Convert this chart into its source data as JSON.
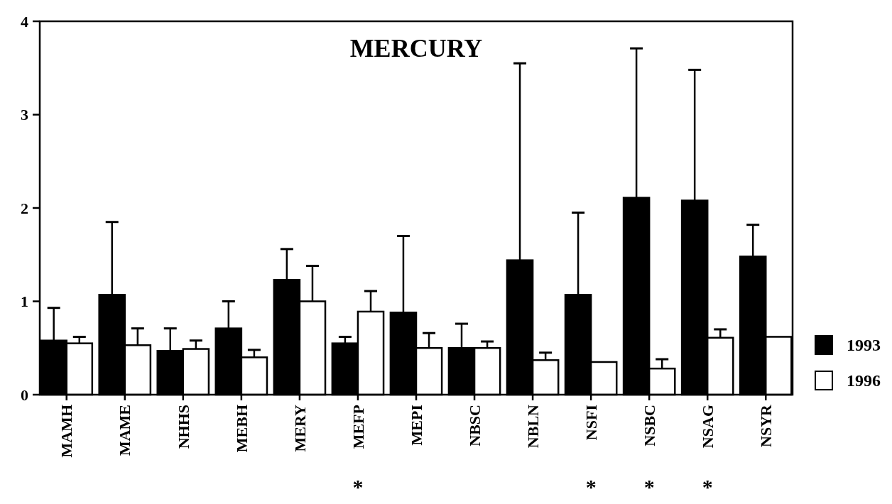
{
  "chart_data": {
    "type": "bar",
    "title": "MERCURY",
    "categories": [
      "MAMH",
      "MAME",
      "NHHS",
      "MEBH",
      "MERY",
      "MEFP",
      "MEPI",
      "NBSC",
      "NBLN",
      "NSFI",
      "NSBC",
      "NSAG",
      "NSYR"
    ],
    "series": [
      {
        "name": "1993",
        "color": "#000000",
        "values": [
          0.58,
          1.07,
          0.47,
          0.71,
          1.23,
          0.55,
          0.88,
          0.5,
          1.44,
          1.07,
          2.11,
          2.08,
          1.48
        ],
        "errors": [
          [
            0.58,
            0.93
          ],
          [
            1.07,
            1.85
          ],
          [
            0.47,
            0.71
          ],
          [
            0.71,
            1.0
          ],
          [
            1.23,
            1.56
          ],
          [
            0.55,
            0.62
          ],
          [
            0.88,
            1.7
          ],
          [
            0.5,
            0.76
          ],
          [
            1.44,
            3.55
          ],
          [
            1.07,
            1.95
          ],
          [
            2.11,
            3.71
          ],
          [
            2.08,
            3.48
          ],
          [
            1.48,
            1.82
          ]
        ]
      },
      {
        "name": "1996",
        "color": "#ffffff",
        "values": [
          0.55,
          0.53,
          0.49,
          0.4,
          1.0,
          0.89,
          0.5,
          0.5,
          0.37,
          0.35,
          0.28,
          0.61,
          0.62
        ],
        "errors": [
          [
            0.55,
            0.62
          ],
          [
            0.53,
            0.71
          ],
          [
            0.49,
            0.58
          ],
          [
            0.4,
            0.48
          ],
          [
            1.0,
            1.38
          ],
          [
            0.89,
            1.11
          ],
          [
            0.5,
            0.66
          ],
          [
            0.5,
            0.57
          ],
          [
            0.37,
            0.45
          ],
          null,
          [
            0.28,
            0.38
          ],
          [
            0.61,
            0.7
          ],
          null
        ]
      }
    ],
    "ylim": [
      0,
      4
    ],
    "yticks": [
      0,
      1,
      2,
      3,
      4
    ],
    "grid": false,
    "legend": "right",
    "annotations": [
      "*",
      "*",
      "*",
      "*"
    ]
  }
}
